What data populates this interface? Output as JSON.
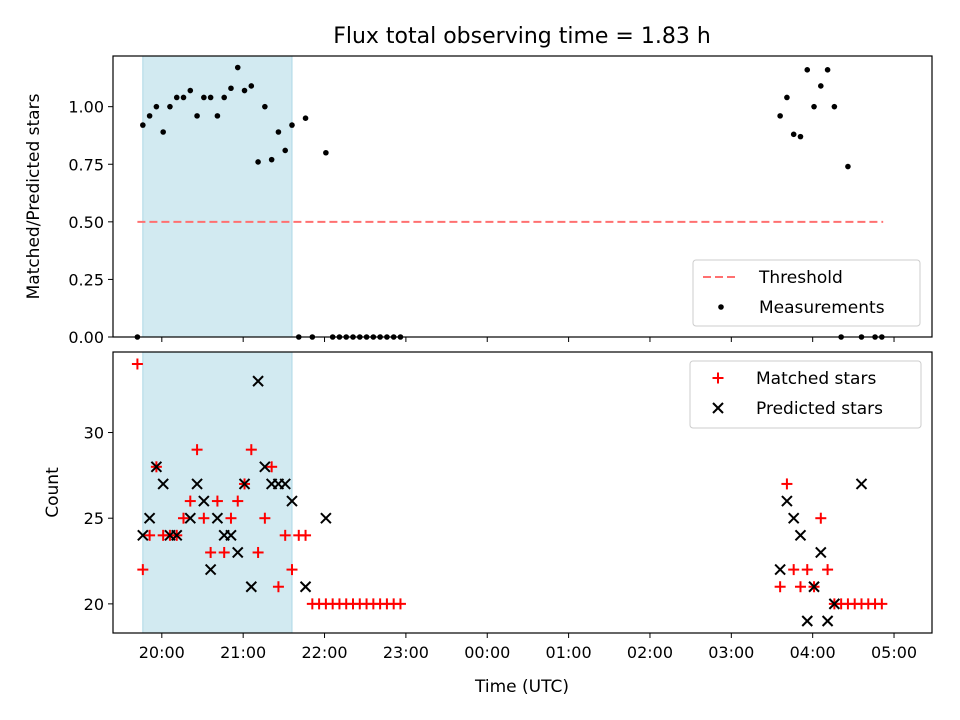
{
  "figure": {
    "title": "Flux total observing time = 1.83 h",
    "xlabel": "Time (UTC)"
  },
  "chart_data": [
    {
      "type": "scatter",
      "panel": "top",
      "ylabel": "Matched/Predicted stars",
      "xlim": [
        "19:24",
        "05:28"
      ],
      "ylim": [
        0,
        1.22
      ],
      "yticks": [
        "0.00",
        "0.25",
        "0.50",
        "0.75",
        "1.00"
      ],
      "ytick_values": [
        0,
        0.25,
        0.5,
        0.75,
        1.0
      ],
      "shaded_interval": [
        "19:46",
        "21:36"
      ],
      "shade_color": "#add8e6",
      "legend_position": "lower right",
      "threshold": {
        "name": "Threshold",
        "y": 0.5,
        "x_range": [
          "19:42",
          "04:52"
        ],
        "color": "#ff7070",
        "style": "dashed"
      },
      "series": [
        {
          "name": "Measurements",
          "color": "#000000",
          "marker": "dot",
          "x": [
            "19:42",
            "19:46",
            "19:51",
            "19:56",
            "20:01",
            "20:06",
            "20:11",
            "20:16",
            "20:21",
            "20:26",
            "20:31",
            "20:36",
            "20:41",
            "20:46",
            "20:51",
            "20:56",
            "21:01",
            "21:06",
            "21:11",
            "21:16",
            "21:21",
            "21:26",
            "21:31",
            "21:36",
            "21:41",
            "21:46",
            "21:51",
            "22:01",
            "22:06",
            "22:11",
            "22:16",
            "22:21",
            "22:26",
            "22:31",
            "22:36",
            "22:41",
            "22:46",
            "22:51",
            "22:56",
            "03:36",
            "03:41",
            "03:46",
            "03:51",
            "03:56",
            "04:01",
            "04:06",
            "04:11",
            "04:16",
            "04:21",
            "04:26",
            "04:36",
            "04:46",
            "04:51"
          ],
          "y": [
            0.0,
            0.92,
            0.96,
            1.0,
            0.89,
            1.0,
            1.04,
            1.04,
            1.07,
            0.96,
            1.04,
            1.04,
            0.96,
            1.04,
            1.08,
            1.17,
            1.07,
            1.09,
            0.76,
            1.0,
            0.77,
            0.89,
            0.81,
            0.92,
            0.0,
            0.95,
            0.0,
            0.8,
            0.0,
            0.0,
            0.0,
            0.0,
            0.0,
            0.0,
            0.0,
            0.0,
            0.0,
            0.0,
            0.0,
            0.96,
            1.04,
            0.88,
            0.87,
            1.16,
            1.0,
            1.09,
            1.16,
            1.0,
            0.0,
            0.74,
            0.0,
            0.0,
            0.0
          ]
        }
      ]
    },
    {
      "type": "scatter",
      "panel": "bottom",
      "ylabel": "Count",
      "xlim": [
        "19:24",
        "05:28"
      ],
      "ylim": [
        18.3,
        34.7
      ],
      "yticks": [
        "20",
        "25",
        "30"
      ],
      "ytick_values": [
        20,
        25,
        30
      ],
      "xticks": [
        "20:00",
        "21:00",
        "22:00",
        "23:00",
        "00:00",
        "01:00",
        "02:00",
        "03:00",
        "04:00",
        "05:00"
      ],
      "shaded_interval": [
        "19:46",
        "21:36"
      ],
      "shade_color": "#add8e6",
      "legend_position": "top-right",
      "series": [
        {
          "name": "Matched stars",
          "color": "#ff0000",
          "marker": "plus",
          "points": [
            [
              "19:42",
              34
            ],
            [
              "19:46",
              22
            ],
            [
              "19:51",
              24
            ],
            [
              "19:56",
              28
            ],
            [
              "20:01",
              24
            ],
            [
              "20:06",
              24
            ],
            [
              "20:11",
              24
            ],
            [
              "20:16",
              25
            ],
            [
              "20:21",
              26
            ],
            [
              "20:26",
              29
            ],
            [
              "20:31",
              25
            ],
            [
              "20:36",
              23
            ],
            [
              "20:41",
              26
            ],
            [
              "20:46",
              23
            ],
            [
              "20:51",
              25
            ],
            [
              "20:56",
              26
            ],
            [
              "21:01",
              27
            ],
            [
              "21:06",
              29
            ],
            [
              "21:11",
              23
            ],
            [
              "21:16",
              25
            ],
            [
              "21:21",
              28
            ],
            [
              "21:26",
              21
            ],
            [
              "21:31",
              24
            ],
            [
              "21:36",
              22
            ],
            [
              "21:41",
              24
            ],
            [
              "21:46",
              24
            ],
            [
              "21:51",
              20
            ],
            [
              "21:56",
              20
            ],
            [
              "22:01",
              20
            ],
            [
              "22:06",
              20
            ],
            [
              "22:11",
              20
            ],
            [
              "22:16",
              20
            ],
            [
              "22:21",
              20
            ],
            [
              "22:26",
              20
            ],
            [
              "22:31",
              20
            ],
            [
              "22:36",
              20
            ],
            [
              "22:41",
              20
            ],
            [
              "22:46",
              20
            ],
            [
              "22:51",
              20
            ],
            [
              "22:56",
              20
            ],
            [
              "03:36",
              21
            ],
            [
              "03:41",
              27
            ],
            [
              "03:46",
              22
            ],
            [
              "03:51",
              21
            ],
            [
              "03:56",
              22
            ],
            [
              "04:01",
              21
            ],
            [
              "04:06",
              25
            ],
            [
              "04:11",
              22
            ],
            [
              "04:16",
              20
            ],
            [
              "04:21",
              20
            ],
            [
              "04:26",
              20
            ],
            [
              "04:31",
              20
            ],
            [
              "04:36",
              20
            ],
            [
              "04:41",
              20
            ],
            [
              "04:46",
              20
            ],
            [
              "04:51",
              20
            ]
          ]
        },
        {
          "name": "Predicted stars",
          "color": "#000000",
          "marker": "x",
          "points": [
            [
              "19:46",
              24
            ],
            [
              "19:51",
              25
            ],
            [
              "19:56",
              28
            ],
            [
              "20:01",
              27
            ],
            [
              "20:06",
              24
            ],
            [
              "20:11",
              24
            ],
            [
              "20:21",
              25
            ],
            [
              "20:26",
              27
            ],
            [
              "20:31",
              26
            ],
            [
              "20:36",
              22
            ],
            [
              "20:41",
              25
            ],
            [
              "20:46",
              24
            ],
            [
              "20:51",
              24
            ],
            [
              "20:56",
              23
            ],
            [
              "21:01",
              27
            ],
            [
              "21:06",
              21
            ],
            [
              "21:11",
              33
            ],
            [
              "21:16",
              28
            ],
            [
              "21:21",
              27
            ],
            [
              "21:26",
              27
            ],
            [
              "21:31",
              27
            ],
            [
              "21:36",
              26
            ],
            [
              "21:46",
              21
            ],
            [
              "22:01",
              25
            ],
            [
              "03:36",
              22
            ],
            [
              "03:41",
              26
            ],
            [
              "03:46",
              25
            ],
            [
              "03:51",
              24
            ],
            [
              "03:56",
              19
            ],
            [
              "04:01",
              21
            ],
            [
              "04:06",
              23
            ],
            [
              "04:11",
              19
            ],
            [
              "04:16",
              20
            ],
            [
              "04:36",
              27
            ]
          ]
        }
      ]
    }
  ]
}
